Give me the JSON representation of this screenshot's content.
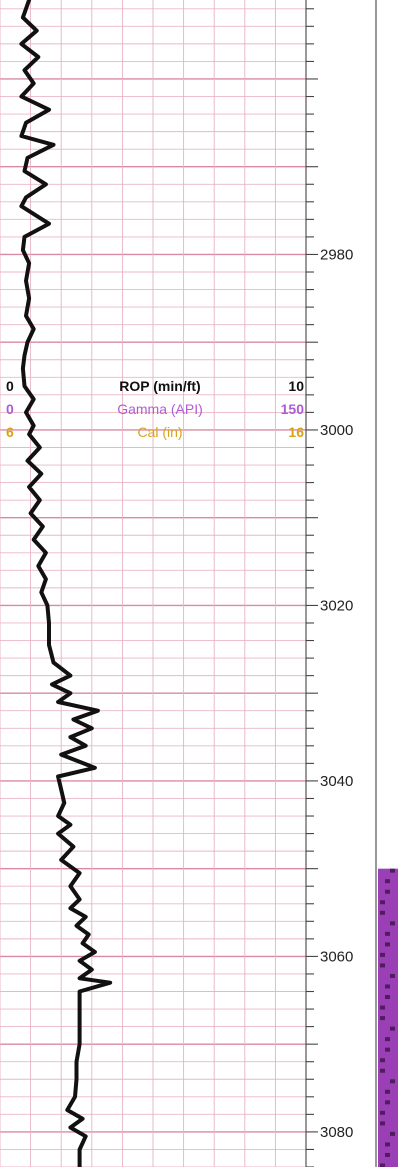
{
  "chart_data": {
    "type": "line",
    "title": "",
    "depth_axis": {
      "range": [
        2951,
        3084
      ],
      "labels": [
        2980,
        3000,
        3020,
        3040,
        3060,
        3080
      ],
      "major_tick_ft": 10,
      "minor_tick_ft": 2
    },
    "grid": true,
    "header": {
      "curves": [
        {
          "name": "ROP (min/ft)",
          "min": "0",
          "max": "10",
          "color": "#111111"
        },
        {
          "name": "Gamma (API)",
          "min": "0",
          "max": "150",
          "color": "#b05bd6"
        },
        {
          "name": "Cal (in)",
          "min": "6",
          "max": "16",
          "color": "#d9a21b"
        }
      ]
    },
    "series": [
      {
        "name": "ROP (min/ft)",
        "unit": "min/ft",
        "color": "#111111",
        "points": [
          [
            2951.0,
            0.95
          ],
          [
            2953.0,
            0.75
          ],
          [
            2954.5,
            1.2
          ],
          [
            2956.0,
            0.7
          ],
          [
            2957.5,
            1.25
          ],
          [
            2959.0,
            0.8
          ],
          [
            2960.5,
            1.1
          ],
          [
            2962.0,
            0.7
          ],
          [
            2963.5,
            1.6
          ],
          [
            2965.0,
            0.85
          ],
          [
            2966.5,
            0.7
          ],
          [
            2967.5,
            1.75
          ],
          [
            2969.0,
            0.9
          ],
          [
            2970.5,
            0.8
          ],
          [
            2972.0,
            1.5
          ],
          [
            2973.5,
            0.85
          ],
          [
            2974.5,
            0.7
          ],
          [
            2976.5,
            1.6
          ],
          [
            2978.0,
            0.8
          ],
          [
            2979.5,
            0.75
          ],
          [
            2981.0,
            0.95
          ],
          [
            2983.0,
            0.85
          ],
          [
            2985.0,
            0.95
          ],
          [
            2987.0,
            0.85
          ],
          [
            2988.5,
            1.1
          ],
          [
            2990.0,
            0.9
          ],
          [
            2991.5,
            0.8
          ],
          [
            2993.0,
            0.75
          ],
          [
            2995.0,
            0.8
          ],
          [
            2996.5,
            1.1
          ],
          [
            2998.0,
            0.85
          ],
          [
            2999.5,
            1.1
          ],
          [
            3000.5,
            0.95
          ],
          [
            3002.0,
            1.3
          ],
          [
            3003.5,
            0.9
          ],
          [
            3005.0,
            1.35
          ],
          [
            3006.5,
            0.95
          ],
          [
            3008.0,
            1.3
          ],
          [
            3009.5,
            1.0
          ],
          [
            3011.0,
            1.4
          ],
          [
            3012.5,
            1.1
          ],
          [
            3014.0,
            1.5
          ],
          [
            3015.5,
            1.25
          ],
          [
            3017.0,
            1.5
          ],
          [
            3018.5,
            1.35
          ],
          [
            3020.0,
            1.55
          ],
          [
            3022.0,
            1.6
          ],
          [
            3024.5,
            1.6
          ],
          [
            3026.5,
            1.75
          ],
          [
            3028.0,
            2.3
          ],
          [
            3029.0,
            1.7
          ],
          [
            3030.0,
            2.3
          ],
          [
            3031.0,
            1.9
          ],
          [
            3032.0,
            3.2
          ],
          [
            3033.0,
            2.4
          ],
          [
            3034.0,
            3.0
          ],
          [
            3035.0,
            2.3
          ],
          [
            3036.0,
            2.8
          ],
          [
            3037.0,
            2.0
          ],
          [
            3038.5,
            3.1
          ],
          [
            3039.5,
            1.9
          ],
          [
            3041.0,
            2.0
          ],
          [
            3042.5,
            2.1
          ],
          [
            3044.0,
            1.9
          ],
          [
            3045.0,
            2.3
          ],
          [
            3046.0,
            1.9
          ],
          [
            3047.5,
            2.4
          ],
          [
            3049.0,
            2.0
          ],
          [
            3050.5,
            2.6
          ],
          [
            3052.0,
            2.3
          ],
          [
            3053.5,
            2.6
          ],
          [
            3054.5,
            2.3
          ],
          [
            3055.5,
            2.8
          ],
          [
            3056.5,
            2.5
          ],
          [
            3057.5,
            2.9
          ],
          [
            3058.5,
            2.7
          ],
          [
            3059.5,
            3.1
          ],
          [
            3060.5,
            2.6
          ],
          [
            3061.5,
            3.0
          ],
          [
            3062.5,
            2.6
          ],
          [
            3063.0,
            3.6
          ],
          [
            3064.0,
            2.6
          ],
          [
            3066.0,
            2.6
          ],
          [
            3068.0,
            2.6
          ],
          [
            3070.0,
            2.6
          ],
          [
            3072.0,
            2.5
          ],
          [
            3074.0,
            2.5
          ],
          [
            3076.0,
            2.45
          ],
          [
            3077.5,
            2.2
          ],
          [
            3078.5,
            2.7
          ],
          [
            3079.5,
            2.3
          ],
          [
            3080.5,
            2.8
          ],
          [
            3082.0,
            2.6
          ],
          [
            3084.0,
            2.6
          ]
        ]
      }
    ],
    "lithology_strip": {
      "from": 3050,
      "to": 3084,
      "color": "#9a3fb5"
    }
  }
}
